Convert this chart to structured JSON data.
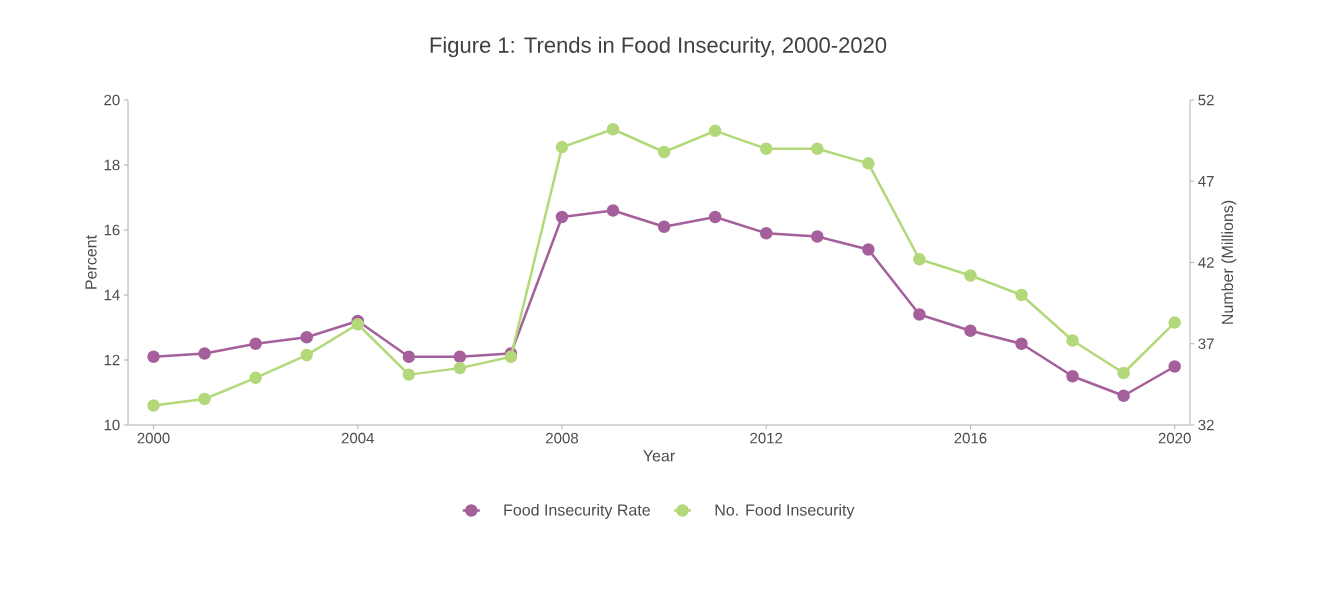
{
  "chart_data": {
    "type": "line",
    "title": "Figure 1: Trends in Food Insecurity, 2000-2020",
    "xlabel": "Year",
    "ylabel": "Percent",
    "y2label": "Number (Millions)",
    "x": [
      2000,
      2001,
      2002,
      2003,
      2004,
      2005,
      2006,
      2007,
      2008,
      2009,
      2010,
      2011,
      2012,
      2013,
      2014,
      2015,
      2016,
      2017,
      2018,
      2019,
      2020
    ],
    "series": [
      {
        "name": "Food Insecurity Rate",
        "color": "#a5609b",
        "values": [
          12.1,
          12.2,
          12.5,
          12.7,
          13.2,
          12.1,
          12.1,
          12.2,
          16.4,
          16.6,
          16.1,
          16.4,
          15.9,
          15.8,
          15.4,
          13.4,
          12.9,
          12.5,
          11.5,
          10.9,
          11.8
        ]
      },
      {
        "name": "No. Food Insecurity",
        "color": "#b3d87a",
        "axis": "y2",
        "values": [
          33.2,
          33.6,
          34.9,
          36.3,
          38.2,
          35.1,
          35.5,
          36.2,
          49.1,
          50.2,
          48.8,
          50.1,
          49.0,
          49.0,
          48.1,
          42.2,
          41.2,
          40.0,
          37.2,
          35.2,
          38.3
        ]
      }
    ],
    "xlim": [
      1999.5,
      2020.3
    ],
    "xticks": [
      2000,
      2004,
      2008,
      2012,
      2016,
      2020
    ],
    "ylim": [
      10,
      20
    ],
    "yticks": [
      10,
      12,
      14,
      16,
      18,
      20
    ],
    "y2lim": [
      32,
      52
    ],
    "y2ticks": [
      32,
      37,
      42,
      47,
      52
    ],
    "grid": false,
    "legend": "bottom",
    "marker": "circle",
    "line_style": "solid"
  }
}
